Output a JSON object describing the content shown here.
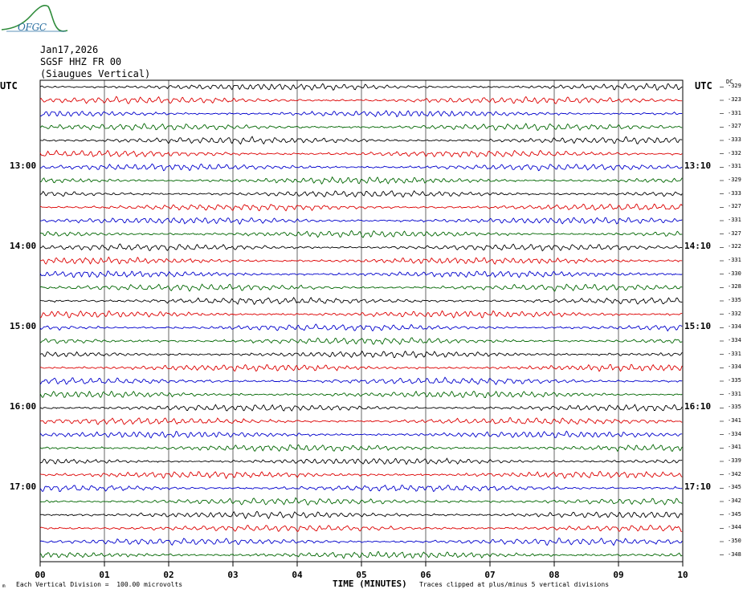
{
  "header": {
    "logo": "OFGC",
    "date": "Jan17,2026",
    "station": "SGSF HHZ FR 00",
    "description": "(Siaugues Vertical)"
  },
  "utc_left": "UTC",
  "utc_right": "UTC",
  "dc_label": "DC",
  "footer": {
    "mark": "m",
    "scale_note": "Each Vertical Division =  100.00 microvolts",
    "x_title": "TIME (MINUTES)",
    "clip_note": "Traces clipped at plus/minus 5 vertical divisions"
  },
  "colors": {
    "trace_cycle": [
      "#000000",
      "#dd0000",
      "#0000cc",
      "#006600"
    ],
    "grid": "#000000",
    "logo": "#2a6fa0",
    "logo_hill": "#2e8b3a"
  },
  "chart_data": {
    "type": "line",
    "title": "",
    "xlabel": "TIME (MINUTES)",
    "ylabel": "",
    "xlim": [
      0,
      10
    ],
    "x_ticks": [
      "00",
      "01",
      "02",
      "03",
      "04",
      "05",
      "06",
      "07",
      "08",
      "09",
      "10"
    ],
    "rows_per_hour": 6,
    "minutes_per_row": 10,
    "left_hour_labels": [
      {
        "row": 6,
        "label": "13:00"
      },
      {
        "row": 12,
        "label": "14:00"
      },
      {
        "row": 18,
        "label": "15:00"
      },
      {
        "row": 24,
        "label": "16:00"
      },
      {
        "row": 30,
        "label": "17:00"
      }
    ],
    "right_hour_labels": [
      {
        "row": 6,
        "label": "13:10"
      },
      {
        "row": 12,
        "label": "14:10"
      },
      {
        "row": 18,
        "label": "15:10"
      },
      {
        "row": 24,
        "label": "16:10"
      },
      {
        "row": 30,
        "label": "17:10"
      }
    ],
    "dc_offsets": [
      "-329",
      "-323",
      "-331",
      "-327",
      "-333",
      "-332",
      "-331",
      "-329",
      "-333",
      "-327",
      "-331",
      "-327",
      "-322",
      "-331",
      "-330",
      "-328",
      "-335",
      "-332",
      "-334",
      "-334",
      "-331",
      "-334",
      "-335",
      "-331",
      "-335",
      "-341",
      "-334",
      "-341",
      "-339",
      "-342",
      "-345",
      "-342",
      "-345",
      "-344",
      "-350",
      "-348"
    ],
    "trace_count": 36,
    "grid": true
  }
}
